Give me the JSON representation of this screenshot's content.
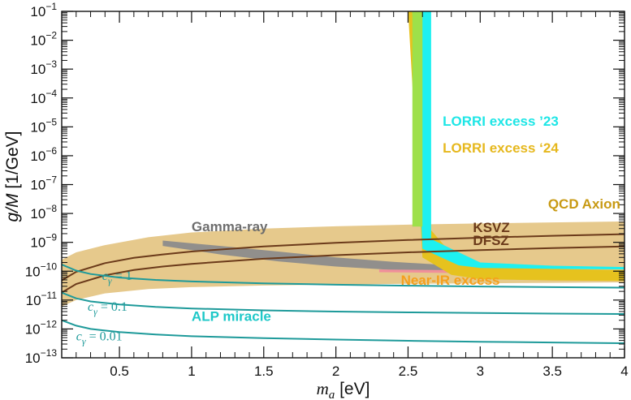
{
  "chart_data": {
    "type": "line",
    "title": "",
    "xlabel": {
      "var": "m",
      "sub": "a",
      "unit": " [eV]"
    },
    "ylabel": {
      "var": "g/M",
      "unit": " [1/GeV]"
    },
    "xlim": [
      0.1,
      4.0
    ],
    "ylim": [
      1e-13,
      0.1
    ],
    "yscale": "log",
    "x_ticks": [
      0.5,
      1,
      1.5,
      2,
      2.5,
      3,
      3.5,
      4
    ],
    "x_tick_labels": [
      "0.5",
      "1",
      "1.5",
      "2",
      "2.5",
      "3",
      "3.5",
      "4"
    ],
    "y_tick_exponents": [
      -13,
      -12,
      -11,
      -10,
      -9,
      -8,
      -7,
      -6,
      -5,
      -4,
      -3,
      -2,
      -1
    ],
    "y_tick_base": "10",
    "colors": {
      "qcd_band": "#e6c98c",
      "lines_qcd": "#6b3a1a",
      "lines_alp": "#1e9a9a",
      "gamma_ray": "#8c8c8c",
      "lorri23": "#1ef0f0",
      "lorri24": "#e6c21e",
      "overlap": "#9ee04a",
      "near_ir": "#f0909a",
      "anno_qcd": "#c89a14",
      "anno_lorri23": "#1ee6e6",
      "anno_lorri24": "#e6b81e",
      "anno_near_ir": "#f5a01e",
      "anno_gamma": "#6e6e6e",
      "anno_alp": "#1ec8c8"
    },
    "series": [
      {
        "name": "KSVZ",
        "color_key": "lines_qcd",
        "x": [
          0.1,
          0.2,
          0.4,
          0.6,
          0.8,
          1.0,
          1.5,
          2.0,
          2.5,
          3.0,
          3.5,
          4.0
        ],
        "y": [
          4.8e-11,
          9.5e-11,
          1.9e-10,
          2.9e-10,
          3.8e-10,
          4.8e-10,
          7.2e-10,
          9.6e-10,
          1.2e-09,
          1.44e-09,
          1.68e-09,
          1.92e-09
        ]
      },
      {
        "name": "DFSZ",
        "color_key": "lines_qcd",
        "x": [
          0.1,
          0.2,
          0.4,
          0.6,
          0.8,
          1.0,
          1.5,
          2.0,
          2.5,
          3.0,
          3.5,
          4.0
        ],
        "y": [
          1.8e-11,
          3.6e-11,
          7.2e-11,
          1.1e-10,
          1.45e-10,
          1.8e-10,
          2.7e-10,
          3.6e-10,
          4.5e-10,
          5.4e-10,
          6.3e-10,
          7.2e-10
        ]
      },
      {
        "name": "c_gamma = 1",
        "color_key": "lines_alp",
        "x": [
          0.1,
          0.2,
          0.3,
          0.5,
          0.75,
          1.0,
          1.5,
          2.0,
          2.5,
          3.0,
          3.5,
          4.0
        ],
        "y": [
          1.7e-10,
          1.05e-10,
          8e-11,
          6e-11,
          5e-11,
          4.4e-11,
          3.8e-11,
          3.4e-11,
          3.15e-11,
          2.95e-11,
          2.8e-11,
          2.7e-11
        ]
      },
      {
        "name": "c_gamma = 0.1",
        "color_key": "lines_alp",
        "x": [
          0.1,
          0.2,
          0.3,
          0.5,
          0.75,
          1.0,
          1.5,
          2.0,
          2.5,
          3.0,
          3.5,
          4.0
        ],
        "y": [
          1.8e-11,
          1.15e-11,
          9e-12,
          7e-12,
          5.8e-12,
          5.1e-12,
          4.4e-12,
          4e-12,
          3.75e-12,
          3.55e-12,
          3.4e-12,
          3.3e-12
        ]
      },
      {
        "name": "c_gamma = 0.01",
        "color_key": "lines_alp",
        "x": [
          0.1,
          0.2,
          0.3,
          0.5,
          0.75,
          1.0,
          1.5,
          2.0,
          2.5,
          3.0,
          3.5,
          4.0
        ],
        "y": [
          2e-12,
          1.3e-12,
          1e-12,
          7.8e-13,
          6.4e-13,
          5.6e-13,
          4.8e-13,
          4.3e-13,
          3.9e-13,
          3.6e-13,
          3.4e-13,
          3.2e-13
        ]
      }
    ],
    "regions": [
      {
        "name": "QCD Axion band",
        "color_key": "qcd_band",
        "upper": {
          "x": [
            0.1,
            0.2,
            0.4,
            0.7,
            1.0,
            1.5,
            2.0,
            2.5,
            3.0,
            3.5,
            4.0
          ],
          "y": [
            2.5e-10,
            4.5e-10,
            8e-10,
            1.5e-09,
            2.2e-09,
            3e-09,
            3.6e-09,
            4.1e-09,
            4.5e-09,
            4.9e-09,
            5.3e-09
          ]
        },
        "lower": {
          "x": [
            0.1,
            0.2,
            0.4,
            0.7,
            1.0,
            1.5,
            2.0,
            2.5,
            3.0,
            3.5,
            4.0
          ],
          "y": [
            6e-12,
            1e-11,
            1.7e-11,
            2.4e-11,
            2.8e-11,
            3.2e-11,
            3.45e-11,
            3.65e-11,
            3.8e-11,
            3.95e-11,
            4.1e-11
          ]
        }
      },
      {
        "name": "Gamma-ray",
        "color_key": "gamma_ray",
        "upper": {
          "x": [
            0.8,
            1.2,
            1.6,
            2.0,
            2.4,
            2.8,
            3.2,
            3.4
          ],
          "y": [
            1.15e-09,
            7.5e-10,
            4.8e-10,
            3e-10,
            2.1e-10,
            1.6e-10,
            1.3e-10,
            1.2e-10
          ]
        },
        "lower": {
          "x": [
            0.8,
            1.2,
            1.6,
            2.0,
            2.4,
            2.8,
            3.2,
            3.4
          ],
          "y": [
            7.5e-10,
            3.8e-10,
            2.2e-10,
            1.45e-10,
            1.1e-10,
            9.5e-11,
            8.8e-11,
            8.5e-11
          ]
        }
      },
      {
        "name": "Near-IR excess",
        "color_key": "near_ir",
        "upper": {
          "x": [
            2.3,
            2.7,
            3.0,
            3.4
          ],
          "y": [
            1.15e-10,
            1.1e-10,
            1.08e-10,
            1.05e-10
          ]
        },
        "lower": {
          "x": [
            2.3,
            2.7,
            3.0,
            3.4
          ],
          "y": [
            9.2e-11,
            8.8e-11,
            8.6e-11,
            8.4e-11
          ]
        }
      },
      {
        "name": "LORRI excess '24",
        "color_key": "lorri24",
        "upper": {
          "x": [
            2.5,
            2.6,
            2.65,
            2.8,
            3.0,
            3.5,
            4.0
          ],
          "y": [
            0.1,
            0.1,
            3e-09,
            4e-10,
            1.6e-10,
            1.2e-10,
            1.1e-10
          ]
        },
        "lower": {
          "x": [
            2.5,
            2.6,
            2.8,
            3.0,
            3.5,
            4.0
          ],
          "y": [
            0.1,
            3e-10,
            7.5e-11,
            5.3e-11,
            4.8e-11,
            4.6e-11
          ]
        }
      },
      {
        "name": "LORRI excess '23",
        "color_key": "lorri23",
        "upper": {
          "x": [
            2.6,
            2.66,
            2.66,
            2.8,
            3.0,
            3.5,
            4.0
          ],
          "y": [
            0.1,
            0.1,
            1.3e-09,
            6e-10,
            2e-10,
            1.55e-10,
            1.4e-10
          ]
        },
        "lower": {
          "x": [
            2.53,
            2.6,
            2.85,
            3.0,
            3.5,
            4.0
          ],
          "y": [
            0.1,
            6e-10,
            1.6e-10,
            1.3e-10,
            1.2e-10,
            1.15e-10
          ]
        }
      },
      {
        "name": "Overlap",
        "color_key": "overlap",
        "upper": {
          "x": [
            2.53,
            2.6
          ],
          "y": [
            0.1,
            0.1
          ]
        },
        "lower": {
          "x": [
            2.53,
            2.6
          ],
          "y": [
            3.5e-09,
            3.5e-09
          ]
        }
      }
    ],
    "annotations": [
      {
        "text": "LORRI excess ’23",
        "color_key": "anno_lorri23",
        "x": 2.74,
        "y": 1.1e-05
      },
      {
        "text": "LORRI excess ‘24",
        "color_key": "anno_lorri24",
        "x": 2.74,
        "y": 1.3e-06
      },
      {
        "text": "QCD Axion",
        "color_key": "anno_qcd",
        "x": 3.47,
        "y": 1.5e-08
      },
      {
        "text": "KSVZ",
        "color_key": "lines_qcd",
        "x": 2.95,
        "y": 2.3e-09
      },
      {
        "text": "DFSZ",
        "color_key": "lines_qcd",
        "x": 2.95,
        "y": 8e-10
      },
      {
        "text": "Gamma-ray",
        "color_key": "anno_gamma",
        "x": 1.0,
        "y": 2.4e-09
      },
      {
        "text": "Near-IR excess",
        "color_key": "anno_near_ir",
        "x": 2.45,
        "y": 3.4e-11
      },
      {
        "text": "ALP miracle",
        "color_key": "anno_alp",
        "x": 1.0,
        "y": 1.9e-12
      }
    ],
    "math_annotations": [
      {
        "var": "c",
        "sub": "γ",
        "rest": " = 1",
        "color_key": "lines_alp",
        "x": 0.38,
        "y": 5e-11
      },
      {
        "var": "c",
        "sub": "γ",
        "rest": " = 0.1",
        "color_key": "lines_alp",
        "x": 0.28,
        "y": 4.2e-12
      },
      {
        "var": "c",
        "sub": "γ",
        "rest": " = 0.01",
        "color_key": "lines_alp",
        "x": 0.2,
        "y": 4e-13
      }
    ]
  }
}
